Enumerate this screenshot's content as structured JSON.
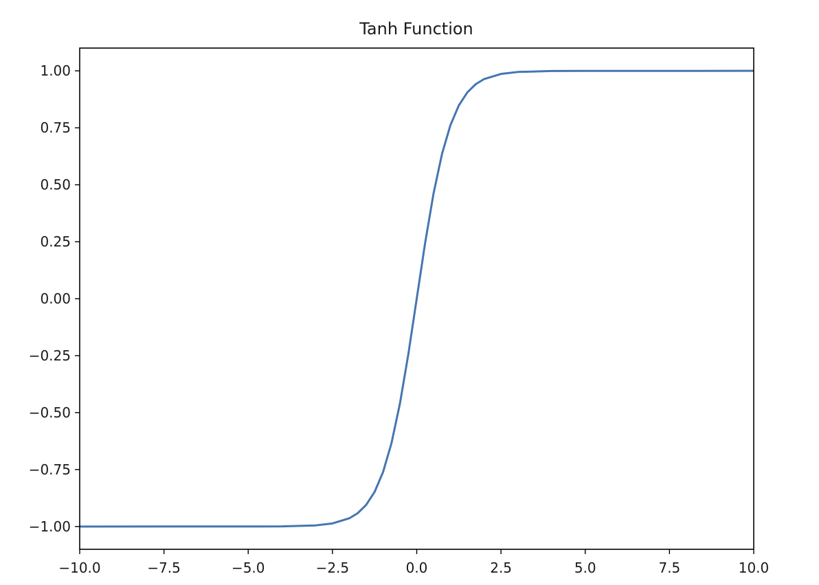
{
  "chart_data": {
    "type": "line",
    "title": "Tanh Function",
    "xlabel": "",
    "ylabel": "",
    "xlim": [
      -10.0,
      10.0
    ],
    "ylim": [
      -1.1,
      1.1
    ],
    "grid": false,
    "x_ticks": [
      -10.0,
      -7.5,
      -5.0,
      -2.5,
      0.0,
      2.5,
      5.0,
      7.5,
      10.0
    ],
    "x_tick_labels": [
      "−10.0",
      "−7.5",
      "−5.0",
      "−2.5",
      "0.0",
      "2.5",
      "5.0",
      "7.5",
      "10.0"
    ],
    "y_ticks": [
      1.0,
      0.75,
      0.5,
      0.25,
      0.0,
      -0.25,
      -0.5,
      -0.75,
      -1.0
    ],
    "y_tick_labels": [
      "1.00",
      "0.75",
      "0.50",
      "0.25",
      "0.00",
      "−0.25",
      "−0.50",
      "−0.75",
      "−1.00"
    ],
    "series": [
      {
        "color": "#4575b0",
        "x": [
          -10.0,
          -5.0,
          -4.0,
          -3.0,
          -2.5,
          -2.0,
          -1.75,
          -1.5,
          -1.25,
          -1.0,
          -0.75,
          -0.5,
          -0.25,
          0.0,
          0.25,
          0.5,
          0.75,
          1.0,
          1.25,
          1.5,
          1.75,
          2.0,
          2.5,
          3.0,
          4.0,
          5.0,
          10.0
        ],
        "y": [
          -1.0,
          -0.9999,
          -0.9993,
          -0.9951,
          -0.9866,
          -0.964,
          -0.9414,
          -0.9051,
          -0.8483,
          -0.7616,
          -0.6351,
          -0.4621,
          -0.2449,
          0.0,
          0.2449,
          0.4621,
          0.6351,
          0.7616,
          0.8483,
          0.9051,
          0.9414,
          0.964,
          0.9866,
          0.9951,
          0.9993,
          0.9999,
          1.0
        ]
      }
    ]
  }
}
